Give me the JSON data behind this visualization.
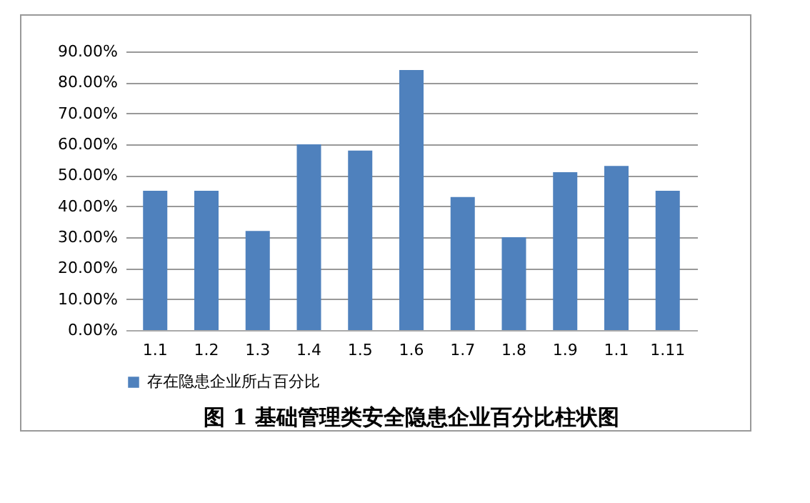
{
  "chart_data": {
    "type": "bar",
    "title": "图 1 基础管理类安全隐患企业百分比柱状图",
    "categories": [
      "1.1",
      "1.2",
      "1.3",
      "1.4",
      "1.5",
      "1.6",
      "1.7",
      "1.8",
      "1.9",
      "1.1",
      "1.11"
    ],
    "series": [
      {
        "name": "存在隐患企业所占百分比",
        "color": "#4f81bd",
        "values": [
          45,
          45,
          32,
          60,
          58,
          84,
          43,
          30,
          51,
          53,
          45
        ]
      }
    ],
    "ylim": [
      0,
      90
    ],
    "yticks": [
      {
        "value": 0,
        "label": "0.00%"
      },
      {
        "value": 10,
        "label": "10.00%"
      },
      {
        "value": 20,
        "label": "20.00%"
      },
      {
        "value": 30,
        "label": "30.00%"
      },
      {
        "value": 40,
        "label": "40.00%"
      },
      {
        "value": 50,
        "label": "50.00%"
      },
      {
        "value": 60,
        "label": "60.00%"
      },
      {
        "value": 70,
        "label": "70.00%"
      },
      {
        "value": 80,
        "label": "80.00%"
      },
      {
        "value": 90,
        "label": "90.00%"
      }
    ],
    "grid": true,
    "legend": "bottom"
  }
}
